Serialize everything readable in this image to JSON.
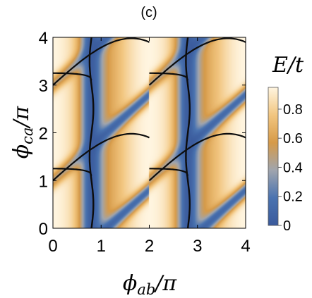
{
  "panel_label": "(c)",
  "chart_data": {
    "type": "heatmap",
    "title": "",
    "xlabel": "ϕab/π",
    "ylabel": "ϕca/π",
    "xlabel_main": "ϕ",
    "xlabel_sub": "ab",
    "xlabel_tail": "/π",
    "ylabel_main": "ϕ",
    "ylabel_sub": "ca",
    "ylabel_tail": "/π",
    "xlim": [
      0,
      4
    ],
    "ylim": [
      0,
      4
    ],
    "x_ticks": [
      "0",
      "1",
      "2",
      "3",
      "4"
    ],
    "y_ticks": [
      "0",
      "1",
      "2",
      "3",
      "4"
    ],
    "colorbar": {
      "title": "E/t",
      "range": [
        0,
        0.95
      ],
      "ticks": [
        "0",
        "0.2",
        "0.4",
        "0.6",
        "0.8"
      ],
      "tick_values": [
        0,
        0.2,
        0.4,
        0.6,
        0.8
      ],
      "colors": [
        "#3a5a9c",
        "#4a73b0",
        "#a0a5ae",
        "#d69a48",
        "#f2c680",
        "#fff5e0"
      ]
    },
    "dark_lines": {
      "vertical_x": [
        0.8,
        2.8
      ],
      "diagonal_through": [
        [
          0,
          1
        ],
        [
          0,
          3
        ],
        [
          2,
          1
        ],
        [
          2,
          3
        ]
      ],
      "color": "#0d0d0d"
    },
    "grid": false
  }
}
